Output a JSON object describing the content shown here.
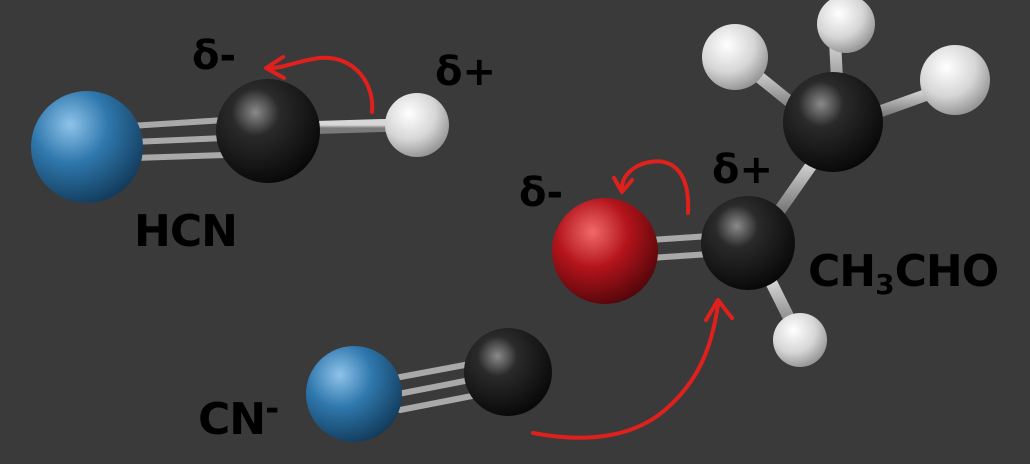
{
  "labels": {
    "hcn_delta_minus": "δ-",
    "hcn_delta_plus": "δ+",
    "hcn_formula": "HCN",
    "acet_delta_minus": "δ-",
    "acet_delta_plus": "δ+",
    "acet_formula_part1": "CH",
    "acet_formula_sub": "3",
    "acet_formula_part2": "CHO",
    "cyanide_formula": "CN",
    "cyanide_charge": "-"
  },
  "colors": {
    "background": "#3a3a3a",
    "nitrogen": "#2f78ad",
    "carbon": "#111111",
    "hydrogen": "#e6e6e6",
    "oxygen": "#b3141b",
    "bond": "#a7a7a7",
    "arrow": "#e0201c"
  }
}
